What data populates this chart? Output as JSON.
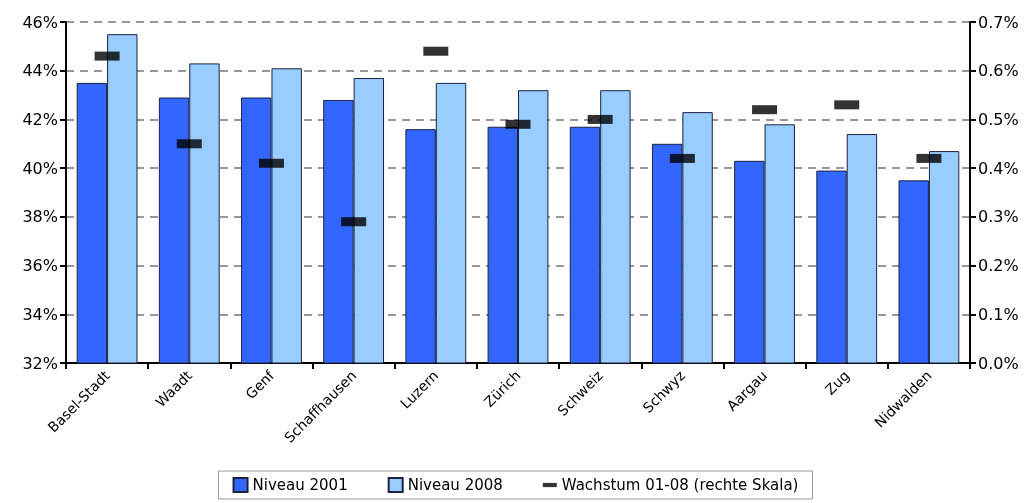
{
  "chart_data": {
    "type": "bar",
    "categories": [
      "Basel-Stadt",
      "Waadt",
      "Genf",
      "Schaffhausen",
      "Luzern",
      "Zürich",
      "Schweiz",
      "Schwyz",
      "Aargau",
      "Zug",
      "Nidwalden"
    ],
    "series": [
      {
        "name": "Niveau 2001",
        "color": "#3366ff",
        "values": [
          43.5,
          42.9,
          42.9,
          42.8,
          41.6,
          41.7,
          41.7,
          41.0,
          40.3,
          39.9,
          39.5
        ]
      },
      {
        "name": "Niveau 2008",
        "color": "#99ccff",
        "values": [
          45.5,
          44.3,
          44.1,
          43.7,
          43.5,
          43.2,
          43.2,
          42.3,
          41.8,
          41.4,
          40.7
        ]
      },
      {
        "name": "Wachstum 01-08 (rechte Skala)",
        "type": "scatter",
        "axis": "y2",
        "color": "#000000",
        "values": [
          0.63,
          0.45,
          0.41,
          0.29,
          0.64,
          0.49,
          0.5,
          0.42,
          0.52,
          0.53,
          0.42
        ]
      }
    ],
    "ylim": [
      32,
      46
    ],
    "yticks": [
      {
        "value": 32,
        "label": "32%"
      },
      {
        "value": 34,
        "label": "34%"
      },
      {
        "value": 36,
        "label": "36%"
      },
      {
        "value": 38,
        "label": "38%"
      },
      {
        "value": 40,
        "label": "40%"
      },
      {
        "value": 42,
        "label": "42%"
      },
      {
        "value": 44,
        "label": "44%"
      },
      {
        "value": 46,
        "label": "46%"
      }
    ],
    "y2lim": [
      0,
      0.7
    ],
    "y2ticks": [
      {
        "value": 0,
        "label": "0.0%"
      },
      {
        "value": 0.1,
        "label": "0.1%"
      },
      {
        "value": 0.2,
        "label": "0.2%"
      },
      {
        "value": 0.3,
        "label": "0.3%"
      },
      {
        "value": 0.4,
        "label": "0.4%"
      },
      {
        "value": 0.5,
        "label": "0.5%"
      },
      {
        "value": 0.6,
        "label": "0.6%"
      },
      {
        "value": 0.7,
        "label": "0.7%"
      }
    ],
    "grid": "y",
    "legend": "bottom"
  }
}
